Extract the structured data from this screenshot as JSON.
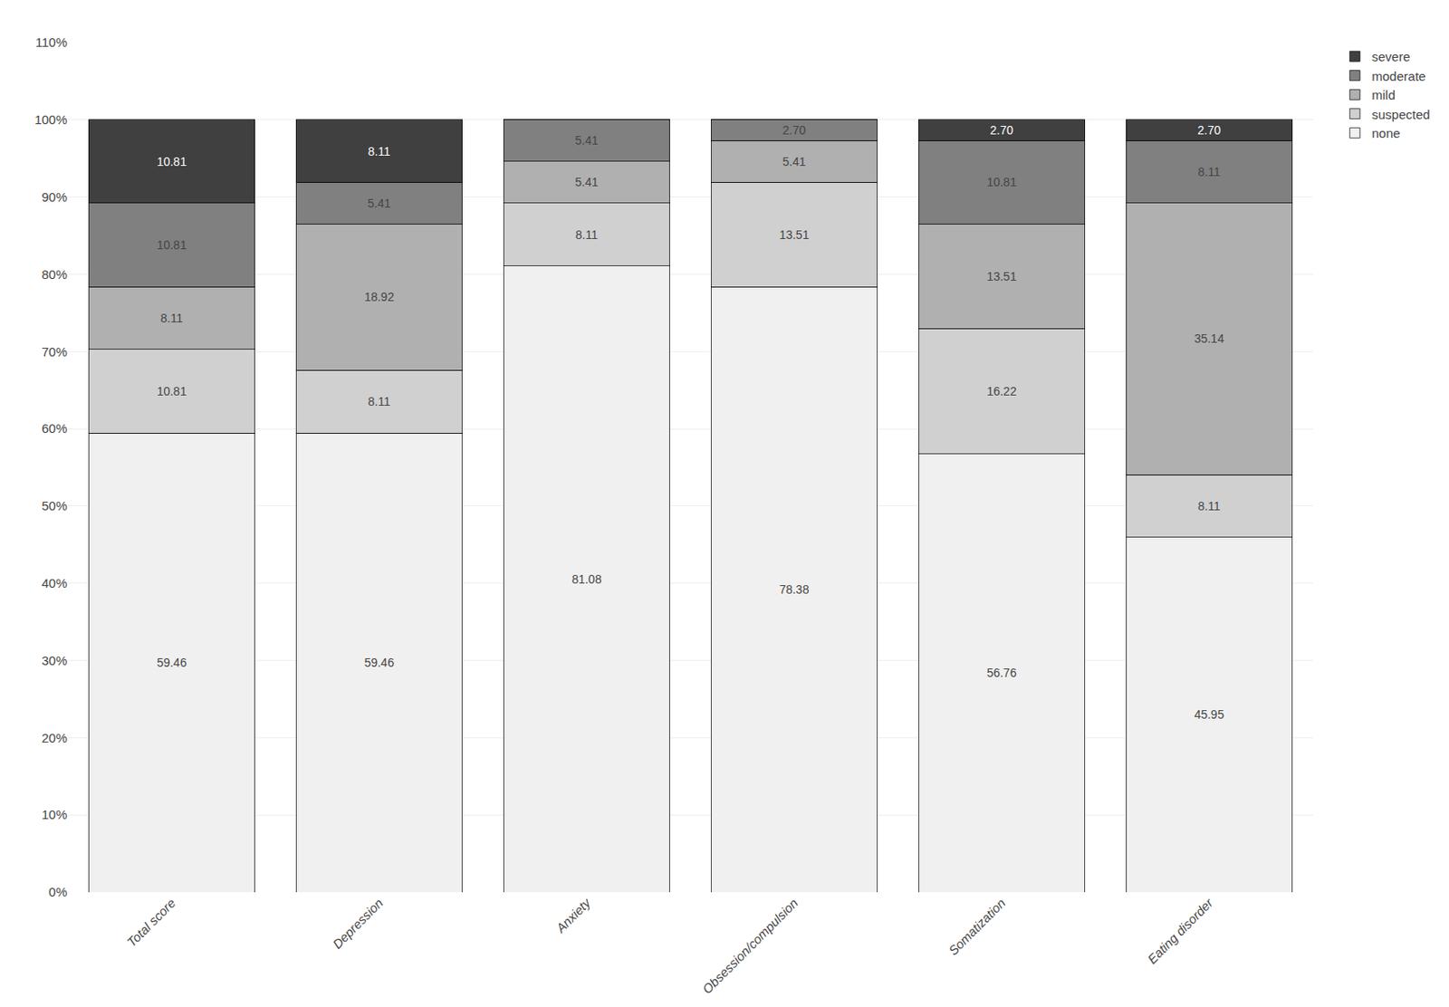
{
  "chart_data": {
    "type": "bar",
    "stacked": true,
    "categories": [
      "Total score",
      "Depression",
      "Anxiety",
      "Obsession/compulsion",
      "Somatization",
      "Eating disorder"
    ],
    "series": [
      {
        "name": "none",
        "color": "#f0f0f0",
        "values": [
          59.46,
          59.46,
          81.08,
          78.38,
          56.76,
          45.95
        ],
        "value_labels": [
          "59.46",
          "59.46",
          "81.08",
          "78.38",
          "56.76",
          "45.95"
        ]
      },
      {
        "name": "suspected",
        "color": "#d0d0d0",
        "values": [
          10.81,
          8.11,
          8.11,
          13.51,
          16.22,
          8.11
        ],
        "value_labels": [
          "10.81",
          "8.11",
          "8.11",
          "13.51",
          "16.22",
          "8.11"
        ]
      },
      {
        "name": "mild",
        "color": "#b0b0b0",
        "values": [
          8.11,
          18.92,
          5.41,
          5.41,
          13.51,
          35.14
        ],
        "value_labels": [
          "8.11",
          "18.92",
          "5.41",
          "5.41",
          "13.51",
          "35.14"
        ]
      },
      {
        "name": "moderate",
        "color": "#808080",
        "values": [
          10.81,
          5.41,
          5.41,
          2.7,
          10.81,
          8.11
        ],
        "value_labels": [
          "10.81",
          "5.41",
          "5.41",
          "2.70",
          "10.81",
          "8.11"
        ]
      },
      {
        "name": "severe",
        "color": "#404040",
        "values": [
          10.81,
          8.11,
          0.0,
          0.0,
          2.7,
          2.7
        ],
        "value_labels": [
          "10.81",
          "8.11",
          null,
          null,
          "2.70",
          "2.70"
        ]
      }
    ],
    "data_labels": true,
    "ylim": [
      0,
      110
    ],
    "yticks": [
      {
        "value": 0,
        "label": "0%"
      },
      {
        "value": 10,
        "label": "10%"
      },
      {
        "value": 20,
        "label": "20%"
      },
      {
        "value": 30,
        "label": "30%"
      },
      {
        "value": 40,
        "label": "40%"
      },
      {
        "value": 50,
        "label": "50%"
      },
      {
        "value": 60,
        "label": "60%"
      },
      {
        "value": 70,
        "label": "70%"
      },
      {
        "value": 80,
        "label": "80%"
      },
      {
        "value": 90,
        "label": "90%"
      },
      {
        "value": 100,
        "label": "100%"
      },
      {
        "value": 110,
        "label": "110%"
      }
    ],
    "grid": true,
    "legend": "right"
  }
}
